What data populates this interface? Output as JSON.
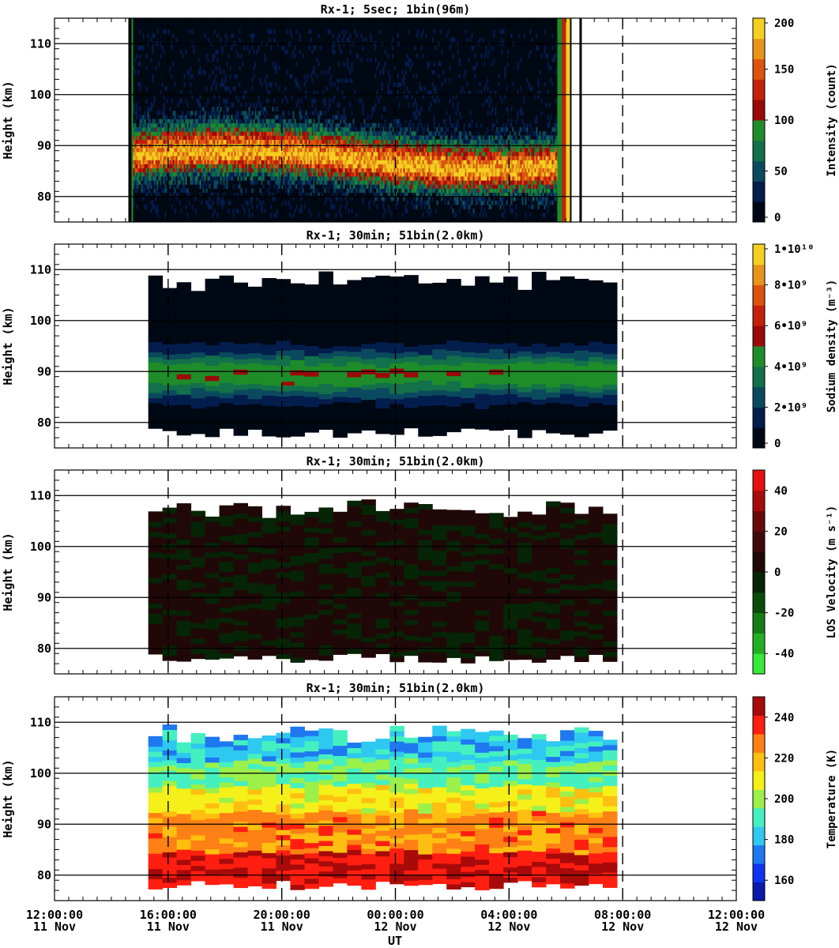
{
  "figure": {
    "x_axis": {
      "label": "UT",
      "ticks": [
        {
          "time": "12:00:00",
          "date": "11 Nov",
          "hour": 0
        },
        {
          "time": "16:00:00",
          "date": "11 Nov",
          "hour": 4
        },
        {
          "time": "20:00:00",
          "date": "11 Nov",
          "hour": 8
        },
        {
          "time": "00:00:00",
          "date": "12 Nov",
          "hour": 12
        },
        {
          "time": "04:00:00",
          "date": "12 Nov",
          "hour": 16
        },
        {
          "time": "08:00:00",
          "date": "12 Nov",
          "hour": 20
        },
        {
          "time": "12:00:00",
          "date": "12 Nov",
          "hour": 24
        }
      ]
    }
  },
  "chart_data": [
    {
      "type": "heatmap",
      "title": "Rx-1;  5sec; 1bin(96m)",
      "ylabel": "Height (km)",
      "yticks": [
        "80",
        "90",
        "100",
        "110"
      ],
      "ylim": [
        75,
        115
      ],
      "xlim_hours_after_1200_11Nov": [
        0,
        24
      ],
      "data_start_hour": 2.6,
      "data_end_hour": 18.2,
      "layer_center_km": 88,
      "colorbar": {
        "label": "Intensity (count)",
        "ticks": [
          "0",
          "50",
          "100",
          "150",
          "200"
        ],
        "range": [
          0,
          200
        ],
        "colors": [
          "#000814",
          "#031d4d",
          "#0b4a5e",
          "#12704a",
          "#1f8c2a",
          "#9a0a0a",
          "#c4210c",
          "#d9540e",
          "#e8931a",
          "#f5d020"
        ]
      }
    },
    {
      "type": "heatmap",
      "title": "Rx-1; 30min; 51bin(2.0km)",
      "ylabel": "Height (km)",
      "yticks": [
        "80",
        "90",
        "100",
        "110"
      ],
      "ylim": [
        75,
        115
      ],
      "colorbar": {
        "label": "Sodium density (m⁻³)",
        "ticks": [
          "0",
          "2•10⁹",
          "4•10⁹",
          "6•10⁹",
          "8•10⁹",
          "1•10¹⁰"
        ],
        "range": [
          0,
          10000000000
        ],
        "colors": [
          "#000814",
          "#031d4d",
          "#0b4a5e",
          "#12704a",
          "#1f8c2a",
          "#9a0a0a",
          "#c4210c",
          "#d9540e",
          "#e8931a",
          "#f5d020"
        ]
      }
    },
    {
      "type": "heatmap",
      "title": "Rx-1; 30min; 51bin(2.0km)",
      "ylabel": "Height (km)",
      "yticks": [
        "80",
        "90",
        "100",
        "110"
      ],
      "ylim": [
        75,
        115
      ],
      "colorbar": {
        "label": "LOS Velocity (m s⁻¹)",
        "ticks": [
          "-40",
          "-20",
          "0",
          "20",
          "40"
        ],
        "range": [
          -50,
          50
        ],
        "colors": [
          "#39e83a",
          "#22b022",
          "#147d14",
          "#0a4d0a",
          "#062406",
          "#200808",
          "#3e0a0a",
          "#6a0909",
          "#a80b0b",
          "#e60f0f"
        ]
      }
    },
    {
      "type": "heatmap",
      "title": "Rx-1; 30min; 51bin(2.0km)",
      "ylabel": "Height (km)",
      "yticks": [
        "80",
        "90",
        "100",
        "110"
      ],
      "ylim": [
        75,
        115
      ],
      "colorbar": {
        "label": "Temperature (K)",
        "ticks": [
          "160",
          "180",
          "200",
          "220",
          "240"
        ],
        "range": [
          150,
          250
        ],
        "colors": [
          "#0a1aa8",
          "#1033f0",
          "#1e78f0",
          "#2ec8f0",
          "#45f0c0",
          "#9cf04a",
          "#f5ef1a",
          "#ffbf10",
          "#ff8014",
          "#ff1e10",
          "#a80a0a"
        ]
      }
    }
  ]
}
